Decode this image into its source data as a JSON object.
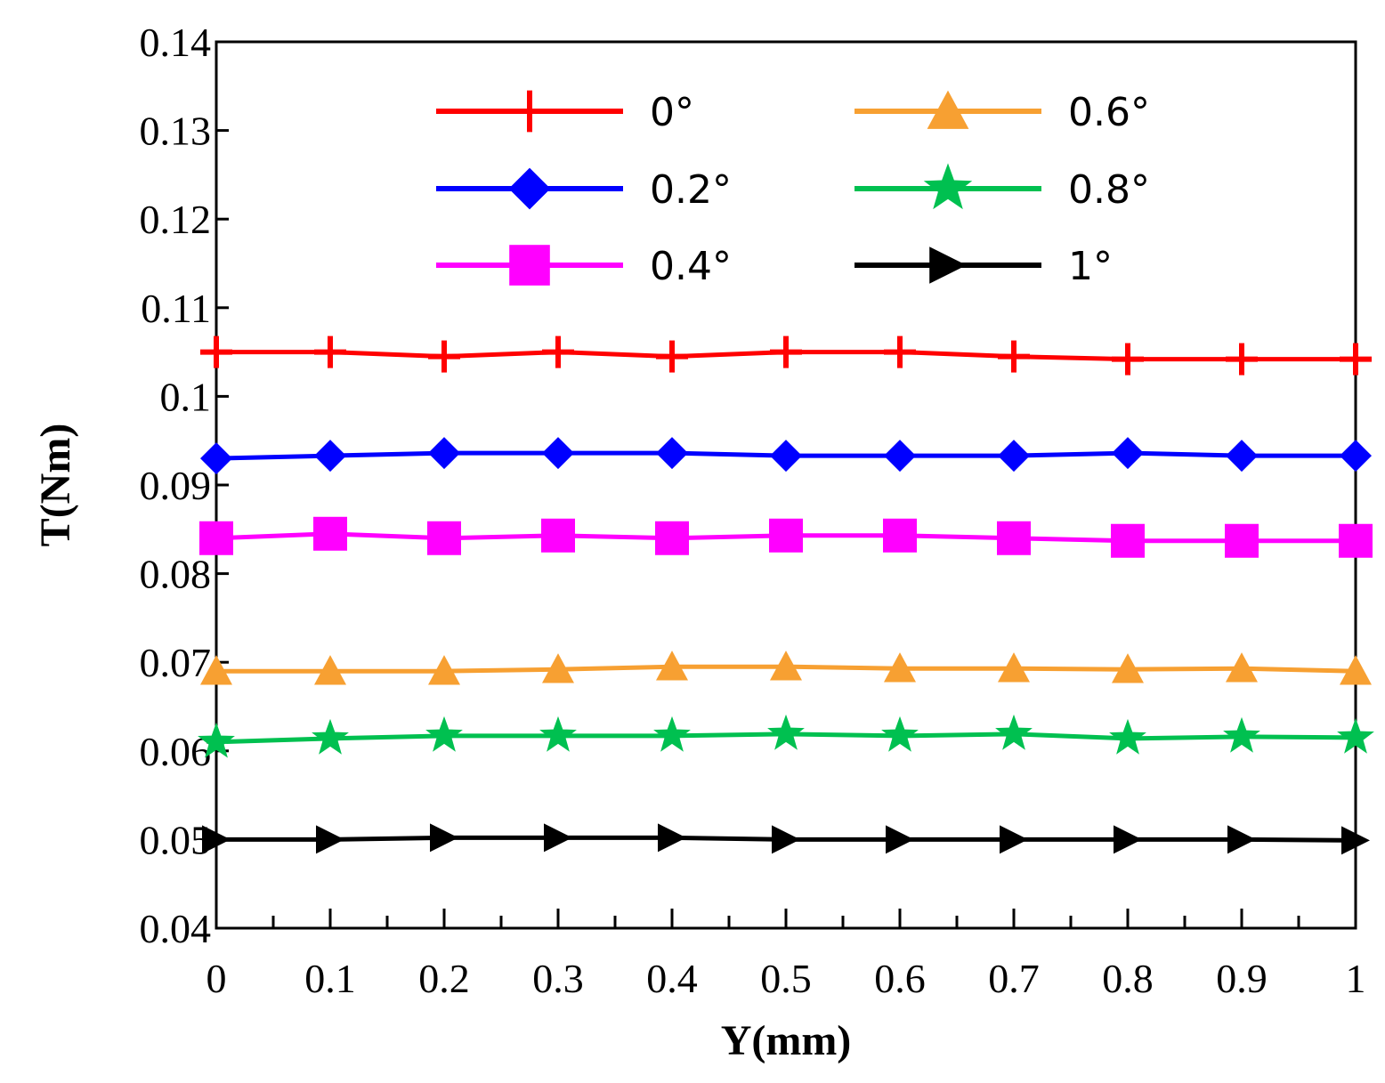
{
  "chart_data": {
    "type": "line",
    "xlabel": "Y(mm)",
    "ylabel": "T(Nm)",
    "xlim": [
      0,
      1
    ],
    "ylim": [
      0.04,
      0.14
    ],
    "x": [
      0,
      0.1,
      0.2,
      0.3,
      0.4,
      0.5,
      0.6,
      0.7,
      0.8,
      0.9,
      1
    ],
    "x_tick_labels": [
      "0",
      "0.1",
      "0.2",
      "0.3",
      "0.4",
      "0.5",
      "0.6",
      "0.7",
      "0.8",
      "0.9",
      "1"
    ],
    "y_ticks": [
      0.04,
      0.05,
      0.06,
      0.07,
      0.08,
      0.09,
      0.1,
      0.11,
      0.12,
      0.13,
      0.14
    ],
    "y_tick_labels": [
      "0.04",
      "0.05",
      "0.06",
      "0.07",
      "0.08",
      "0.09",
      "0.1",
      "0.11",
      "0.12",
      "0.13",
      "0.14"
    ],
    "grid": false,
    "legend_position": "top",
    "series": [
      {
        "name": "0°",
        "color": "#ff0000",
        "marker": "plus",
        "values": [
          0.105,
          0.105,
          0.1045,
          0.105,
          0.1045,
          0.105,
          0.105,
          0.1045,
          0.1042,
          0.1042,
          0.1042
        ]
      },
      {
        "name": "0.2°",
        "color": "#0000ff",
        "marker": "diamond",
        "values": [
          0.093,
          0.0933,
          0.0936,
          0.0936,
          0.0936,
          0.0933,
          0.0933,
          0.0933,
          0.0936,
          0.0933,
          0.0933
        ]
      },
      {
        "name": "0.4°",
        "color": "#ff00ff",
        "marker": "square",
        "values": [
          0.084,
          0.0845,
          0.084,
          0.0843,
          0.084,
          0.0843,
          0.0843,
          0.084,
          0.0837,
          0.0837,
          0.0837
        ]
      },
      {
        "name": "0.6°",
        "color": "#f7a032",
        "marker": "triangle",
        "values": [
          0.069,
          0.069,
          0.069,
          0.0692,
          0.0695,
          0.0695,
          0.0693,
          0.0693,
          0.0692,
          0.0693,
          0.069
        ]
      },
      {
        "name": "0.8°",
        "color": "#00c050",
        "marker": "star",
        "values": [
          0.061,
          0.0614,
          0.0617,
          0.0617,
          0.0617,
          0.0619,
          0.0617,
          0.0619,
          0.0614,
          0.0616,
          0.0615
        ]
      },
      {
        "name": "1°",
        "color": "#000000",
        "marker": "triangle-right",
        "values": [
          0.05,
          0.05,
          0.0502,
          0.0502,
          0.0502,
          0.05,
          0.05,
          0.05,
          0.05,
          0.05,
          0.0499
        ]
      }
    ]
  }
}
